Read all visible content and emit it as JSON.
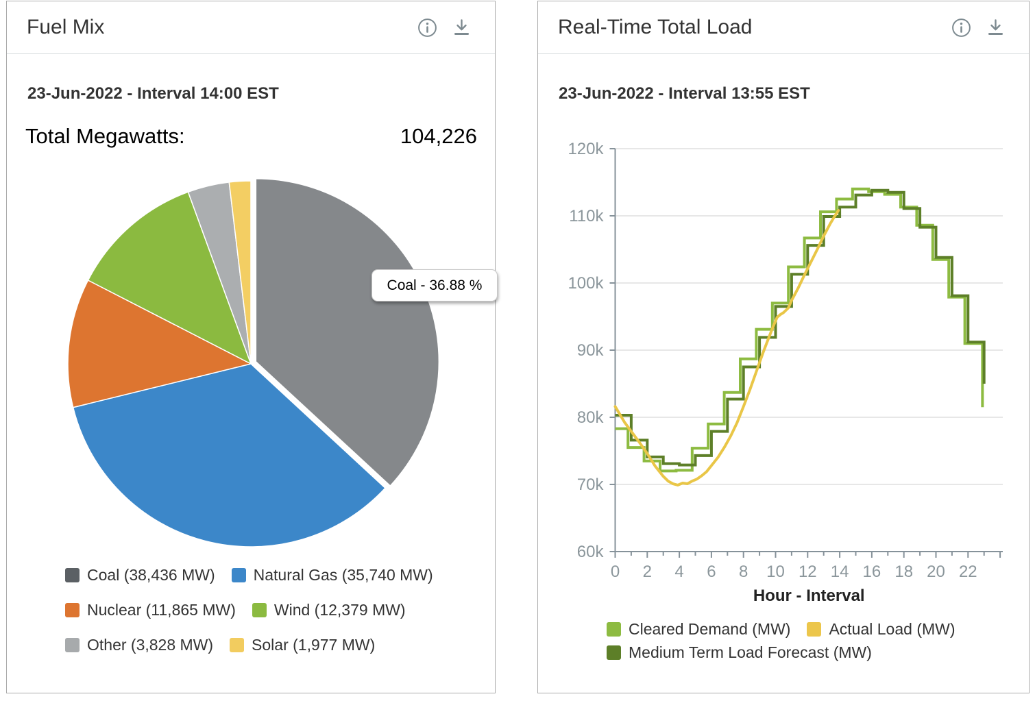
{
  "panels": {
    "fuel_mix": {
      "title": "Fuel Mix",
      "date_line": "23-Jun-2022 - Interval 14:00 EST",
      "total_label": "Total Megawatts:",
      "total_value": "104,226",
      "tooltip": "Coal - 36.88 %"
    },
    "total_load": {
      "title": "Real-Time Total Load",
      "date_line": "23-Jun-2022 - Interval 13:55 EST",
      "xlabel": "Hour - Interval"
    }
  },
  "icons": {
    "info": "circled-i",
    "download": "down-arrow-to-bar",
    "color": "#7d8a90"
  },
  "chart_data": [
    {
      "type": "pie",
      "title": "Fuel Mix",
      "subtitle": "23-Jun-2022 - Interval 14:00 EST",
      "total_megawatts": 104226,
      "categories": [
        "Coal",
        "Natural Gas",
        "Nuclear",
        "Wind",
        "Other",
        "Solar"
      ],
      "values_mw": [
        38436,
        35740,
        11865,
        12379,
        3828,
        1977
      ],
      "percents": [
        36.88,
        34.29,
        11.38,
        11.88,
        3.67,
        1.9
      ],
      "slice_colors": [
        "#85888b",
        "#3c87c9",
        "#dd7530",
        "#8bba40",
        "#abaeb0",
        "#f3ce63"
      ],
      "hovered_slice": "Coal",
      "hover_index": 0,
      "tooltip": "Coal - 36.88 %",
      "start_angle_deg": 0,
      "clockwise": true,
      "legend_rows": [
        [
          {
            "label": "Coal (38,436 MW)",
            "color": "#5b6064"
          },
          {
            "label": "Natural Gas (35,740 MW)",
            "color": "#3c87c9"
          }
        ],
        [
          {
            "label": "Nuclear (11,865 MW)",
            "color": "#dd7530"
          },
          {
            "label": "Wind (12,379 MW)",
            "color": "#8bba40"
          }
        ],
        [
          {
            "label": "Other (3,828 MW)",
            "color": "#a7aaac"
          },
          {
            "label": "Solar (1,977 MW)",
            "color": "#f2cc5f"
          }
        ]
      ]
    },
    {
      "type": "line",
      "title": "Real-Time Total Load",
      "subtitle": "23-Jun-2022 - Interval 13:55 EST",
      "xlabel": "Hour - Interval",
      "ylabel": "",
      "xlim": [
        0,
        24.2
      ],
      "ylim": [
        60000,
        120000
      ],
      "grid": true,
      "legend_position": "bottom",
      "axis_color": "#86929a",
      "grid_color": "#e7e7e7",
      "tick_label_color": "#8b969b",
      "yticks": [
        {
          "value": 60000,
          "label": "60k"
        },
        {
          "value": 70000,
          "label": "70k"
        },
        {
          "value": 80000,
          "label": "80k"
        },
        {
          "value": 90000,
          "label": "90k"
        },
        {
          "value": 100000,
          "label": "100k"
        },
        {
          "value": 110000,
          "label": "110k"
        },
        {
          "value": 120000,
          "label": "120k"
        }
      ],
      "xticks": [
        0,
        2,
        4,
        6,
        8,
        10,
        12,
        14,
        16,
        18,
        20,
        22
      ],
      "series": [
        {
          "name": "Cleared Demand (MW)",
          "color": "#8dbb41",
          "render": "step",
          "x": [
            0,
            0.8,
            1.8,
            2.8,
            3.8,
            4.8,
            5.8,
            6.8,
            7.8,
            8.8,
            9.8,
            10.8,
            11.8,
            12.8,
            13.8,
            14.8,
            15.8,
            16.8,
            17.8,
            18.8,
            19.8,
            20.8,
            21.8,
            22.9
          ],
          "values": [
            78300,
            75500,
            73500,
            72000,
            72100,
            75400,
            79000,
            83700,
            88700,
            93100,
            97000,
            102400,
            106700,
            110600,
            112500,
            114000,
            113600,
            113200,
            111300,
            108600,
            103500,
            97900,
            91000,
            81500
          ]
        },
        {
          "name": "Medium Term Load Forecast (MW)",
          "color": "#5d7f28",
          "render": "step",
          "x": [
            0,
            1,
            2,
            3,
            4,
            5,
            6,
            7,
            8,
            9,
            10,
            11,
            12,
            13,
            14,
            15,
            16,
            17,
            18,
            19,
            20,
            21,
            22,
            23
          ],
          "values": [
            80300,
            76600,
            74100,
            73100,
            72900,
            74300,
            77900,
            82700,
            87500,
            91900,
            96500,
            101300,
            105600,
            109900,
            111300,
            113100,
            113800,
            113500,
            111100,
            108300,
            103800,
            98100,
            91200,
            85000
          ]
        },
        {
          "name": "Actual Load (MW)",
          "color": "#e9c647",
          "render": "line",
          "x": [
            0,
            0.3,
            0.6,
            1,
            1.5,
            2,
            2.5,
            3,
            3.3,
            3.6,
            3.9,
            4.2,
            4.5,
            4.8,
            5.1,
            5.4,
            5.7,
            6,
            6.4,
            6.8,
            7.2,
            7.6,
            8,
            8.4,
            8.8,
            9.2,
            9.6,
            9.9,
            10.1,
            10.3,
            10.5,
            10.8,
            11,
            11.4,
            11.8,
            12.2,
            12.6,
            13,
            13.4,
            13.7,
            13.92
          ],
          "values": [
            81600,
            80400,
            79200,
            77900,
            76300,
            74600,
            72700,
            71200,
            70500,
            70100,
            69900,
            70200,
            70100,
            70500,
            70800,
            71300,
            71900,
            72800,
            74000,
            75500,
            77200,
            79200,
            81600,
            84100,
            86800,
            89500,
            92000,
            93800,
            94900,
            95300,
            95600,
            96300,
            97400,
            99200,
            101200,
            103100,
            105000,
            107000,
            108800,
            110000,
            110800
          ]
        }
      ],
      "legend_rows": [
        [
          {
            "label": "Cleared Demand (MW)",
            "color": "#8dbb41"
          },
          {
            "label": "Actual Load (MW)",
            "color": "#ecc64b"
          }
        ],
        [
          {
            "label": "Medium Term Load Forecast (MW)",
            "color": "#5d7f28"
          }
        ]
      ]
    }
  ]
}
